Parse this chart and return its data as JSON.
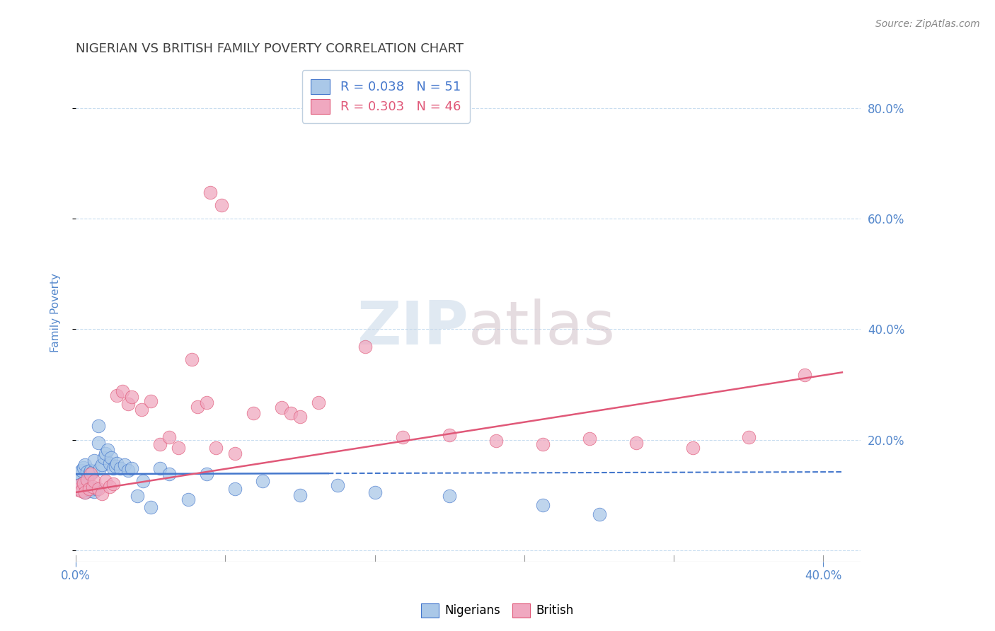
{
  "title": "NIGERIAN VS BRITISH FAMILY POVERTY CORRELATION CHART",
  "source": "Source: ZipAtlas.com",
  "ylabel": "Family Poverty",
  "legend_nigerians": "R = 0.038   N = 51",
  "legend_british": "R = 0.303   N = 46",
  "nigerian_color": "#aac8e8",
  "british_color": "#f0a8c0",
  "nigerian_line_color": "#4477cc",
  "british_line_color": "#e05878",
  "background_color": "#ffffff",
  "grid_color": "#c8ddf0",
  "title_color": "#404040",
  "axis_label_color": "#5588cc",
  "xlim": [
    0.0,
    0.42
  ],
  "ylim": [
    -0.02,
    0.88
  ],
  "nigerian_x": [
    0.001,
    0.002,
    0.002,
    0.003,
    0.003,
    0.004,
    0.004,
    0.005,
    0.005,
    0.006,
    0.006,
    0.007,
    0.007,
    0.008,
    0.008,
    0.009,
    0.009,
    0.01,
    0.01,
    0.011,
    0.012,
    0.012,
    0.013,
    0.014,
    0.015,
    0.016,
    0.017,
    0.018,
    0.019,
    0.02,
    0.021,
    0.022,
    0.024,
    0.026,
    0.028,
    0.03,
    0.033,
    0.036,
    0.04,
    0.045,
    0.05,
    0.06,
    0.07,
    0.085,
    0.1,
    0.12,
    0.14,
    0.16,
    0.2,
    0.25,
    0.28
  ],
  "nigerian_y": [
    0.135,
    0.11,
    0.14,
    0.12,
    0.145,
    0.115,
    0.15,
    0.105,
    0.155,
    0.118,
    0.142,
    0.112,
    0.138,
    0.108,
    0.145,
    0.112,
    0.142,
    0.106,
    0.162,
    0.112,
    0.225,
    0.195,
    0.148,
    0.155,
    0.168,
    0.175,
    0.182,
    0.158,
    0.168,
    0.148,
    0.152,
    0.158,
    0.148,
    0.155,
    0.145,
    0.148,
    0.098,
    0.125,
    0.078,
    0.148,
    0.138,
    0.092,
    0.138,
    0.112,
    0.125,
    0.1,
    0.118,
    0.105,
    0.098,
    0.082,
    0.065
  ],
  "british_x": [
    0.001,
    0.002,
    0.003,
    0.004,
    0.005,
    0.006,
    0.007,
    0.008,
    0.009,
    0.01,
    0.012,
    0.014,
    0.016,
    0.018,
    0.02,
    0.022,
    0.025,
    0.028,
    0.03,
    0.035,
    0.04,
    0.045,
    0.05,
    0.055,
    0.062,
    0.065,
    0.07,
    0.075,
    0.085,
    0.095,
    0.11,
    0.13,
    0.155,
    0.175,
    0.2,
    0.225,
    0.25,
    0.275,
    0.3,
    0.33,
    0.36,
    0.39,
    0.072,
    0.078,
    0.115,
    0.12
  ],
  "british_y": [
    0.11,
    0.118,
    0.108,
    0.122,
    0.105,
    0.128,
    0.112,
    0.138,
    0.115,
    0.125,
    0.112,
    0.102,
    0.125,
    0.115,
    0.12,
    0.28,
    0.288,
    0.265,
    0.278,
    0.255,
    0.27,
    0.192,
    0.205,
    0.185,
    0.345,
    0.26,
    0.268,
    0.185,
    0.175,
    0.248,
    0.258,
    0.268,
    0.368,
    0.205,
    0.208,
    0.198,
    0.192,
    0.202,
    0.195,
    0.185,
    0.205,
    0.318,
    0.648,
    0.625,
    0.248,
    0.242
  ],
  "nig_line_solid_end": 0.135,
  "nig_line_y0": 0.138,
  "nig_line_y1": 0.142,
  "brit_line_y0": 0.105,
  "brit_line_y1": 0.322
}
